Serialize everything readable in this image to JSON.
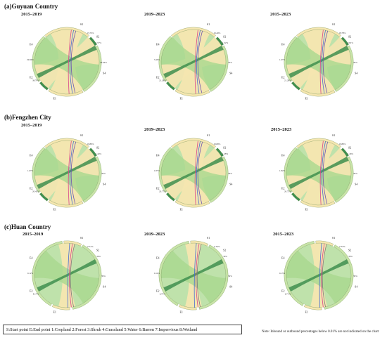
{
  "sections": [
    {
      "title": "(a)Guyuan Country",
      "periods": [
        "2015–2019",
        "2019–2023",
        "2015–2023"
      ]
    },
    {
      "title": "(b)Fengzhen City",
      "periods": [
        "2015–2019",
        "2019–2023",
        "2015–2023"
      ]
    },
    {
      "title": "(c)Huan Country",
      "periods": [
        "2015–2019",
        "2019–2023",
        "2015–2023"
      ]
    }
  ],
  "legend": "S:Start point   E:End point   1:Cropland   2:Forest   3:Shrub   4:Grassland   5:Water   6:Barren   7:Impervious   8:Wetland",
  "note": "Note: Inbound or outbound percentages below 0.01% are not indicated on the chart",
  "colors": {
    "cropland": "#f5e6b0",
    "grassland": "#a9d88f",
    "forest": "#3f8f4f",
    "impervious": "#d9468a",
    "water": "#4a6fd0",
    "ring": "#c8e4a8"
  },
  "rows": [
    {
      "charts": [
        {
          "E1": "E1",
          "E2": "E2",
          "E4": "E4",
          "S1": "S1",
          "S2": "S2",
          "S4": "S4",
          "p1": "15.72%",
          "p2": "38.79%",
          "p3": "36.64%",
          "p4": "1.57%",
          "p5": "29.90%"
        },
        {
          "E1": "E1",
          "E2": "E2",
          "E4": "E4",
          "S1": "S1",
          "S2": "S2",
          "S4": "S4",
          "p1": "19.46%",
          "p2": "21.28%",
          "p3": "33%",
          "p4": "1.32%",
          "p5": "3.40%"
        },
        {
          "E1": "E1",
          "E2": "E2",
          "E4": "E4",
          "S1": "S1",
          "S2": "S2",
          "S4": "S4",
          "p1": "18.78%",
          "p2": "21.28%",
          "p3": "39%",
          "p4": "2.81%",
          "p5": "1.67%"
        }
      ]
    },
    {
      "charts": [
        {
          "E1": "E1",
          "E2": "E2",
          "E4": "E4",
          "S1": "S1",
          "S2": "S2",
          "S4": "S4",
          "p1": "19.86%",
          "p2": "20.42%",
          "p3": "39%",
          "p4": "1.44%",
          "p5": "1.67%"
        },
        {
          "E1": "E1",
          "E2": "E2",
          "E4": "E4",
          "S1": "S1",
          "S2": "S2",
          "S4": "S4",
          "p1": "19.86%",
          "p2": "20.77%",
          "p3": "39%",
          "p4": "1.48%",
          "p5": "1.87%"
        },
        {
          "E1": "E1",
          "E2": "E2",
          "E4": "E4",
          "S1": "S1",
          "S2": "S2",
          "S4": "S4",
          "p1": "19.86%",
          "p2": "20.75%",
          "p3": "39%",
          "p4": "1.46%",
          "p5": "1.82%"
        }
      ]
    },
    {
      "charts": [
        {
          "E1": "E1",
          "E2": "E2",
          "E4": "E4",
          "S1": "S1",
          "S2": "S2",
          "S4": "S4",
          "p1": "6.51%",
          "p2": "8.17%",
          "p3": "39%",
          "p4": "39%",
          "p5": "0.12%"
        },
        {
          "E1": "E1",
          "E2": "E2",
          "E4": "E4",
          "S1": "S1",
          "S2": "S2",
          "S4": "S4",
          "p1": "6.54%",
          "p2": "6.75%",
          "p3": "39%",
          "p4": "39%",
          "p5": "0.14%"
        },
        {
          "E1": "E1",
          "E2": "E2",
          "E4": "E4",
          "S1": "S1",
          "S2": "S2",
          "S4": "S4",
          "p1": "6.53%",
          "p2": "6.71%",
          "p3": "39%",
          "p4": "39%",
          "p5": "0.13%"
        }
      ]
    }
  ]
}
